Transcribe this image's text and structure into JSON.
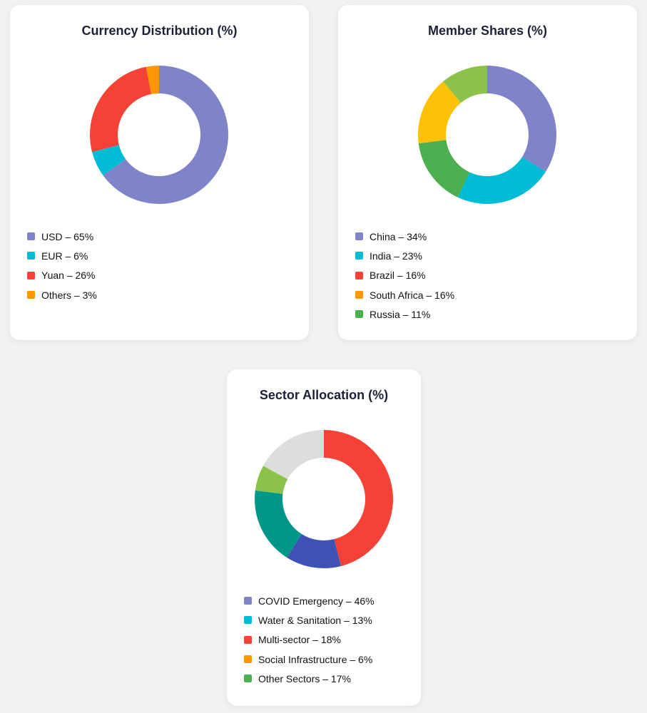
{
  "chart_data": [
    {
      "type": "pie",
      "title": "Currency Distribution (%)",
      "slices": [
        {
          "value": 65,
          "color": "#7f84c8"
        },
        {
          "value": 6,
          "color": "#00bcd4"
        },
        {
          "value": 26,
          "color": "#f44336"
        },
        {
          "value": 3,
          "color": "#ff9800"
        }
      ],
      "legend": [
        {
          "label": "USD – 65%",
          "color": "#7f84c8"
        },
        {
          "label": "EUR – 6%",
          "color": "#00bcd4"
        },
        {
          "label": "Yuan – 26%",
          "color": "#f44336"
        },
        {
          "label": "Others – 3%",
          "color": "#ff9800"
        }
      ]
    },
    {
      "type": "pie",
      "title": "Member Shares (%)",
      "slices": [
        {
          "value": 34,
          "color": "#7f84c8"
        },
        {
          "value": 23,
          "color": "#00bcd4"
        },
        {
          "value": 16,
          "color": "#4caf50"
        },
        {
          "value": 16,
          "color": "#ffc107"
        },
        {
          "value": 11,
          "color": "#8bc34a"
        }
      ],
      "legend": [
        {
          "label": "China – 34%",
          "color": "#7f84c8"
        },
        {
          "label": "India – 23%",
          "color": "#00bcd4"
        },
        {
          "label": "Brazil – 16%",
          "color": "#f44336"
        },
        {
          "label": "South Africa – 16%",
          "color": "#ff9800"
        },
        {
          "label": "Russia – 11%",
          "color": "#4caf50"
        }
      ]
    },
    {
      "type": "pie",
      "title": "Sector Allocation (%)",
      "slices": [
        {
          "value": 46,
          "color": "#f44336"
        },
        {
          "value": 13,
          "color": "#3f51b5"
        },
        {
          "value": 18,
          "color": "#009688"
        },
        {
          "value": 6,
          "color": "#8bc34a"
        },
        {
          "value": 17,
          "color": "#dddddd"
        }
      ],
      "legend": [
        {
          "label": "COVID Emergency – 46%",
          "color": "#7f84c8"
        },
        {
          "label": "Water & Sanitation – 13%",
          "color": "#00bcd4"
        },
        {
          "label": "Multi-sector – 18%",
          "color": "#f44336"
        },
        {
          "label": "Social Infrastructure – 6%",
          "color": "#ff9800"
        },
        {
          "label": "Other Sectors – 17%",
          "color": "#4caf50"
        }
      ]
    }
  ]
}
